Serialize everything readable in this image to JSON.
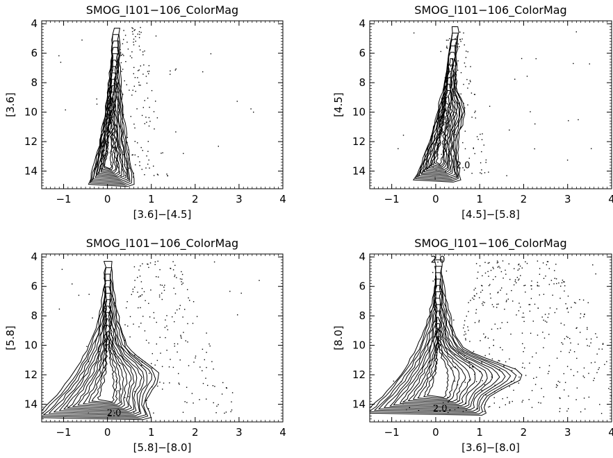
{
  "chart_data": [
    {
      "type": "scatter",
      "subtype": "contour-scatter",
      "title": "SMOG_l101−106_ColorMag",
      "xlabel": "[3.6]−[4.5]",
      "ylabel": "[3.6]",
      "xlim": [
        -1.5,
        4
      ],
      "ylim": [
        15.2,
        3.8
      ],
      "y_inverted": true,
      "xticks": [
        -1,
        0,
        1,
        2,
        3,
        4
      ],
      "xtick_labels": [
        "−1",
        "0",
        "1",
        "2",
        "3",
        "4"
      ],
      "yticks": [
        4,
        6,
        8,
        10,
        12,
        14
      ],
      "ytick_labels": [
        "4",
        "6",
        "8",
        "10",
        "12",
        "14"
      ],
      "contour_labels": [],
      "grid": false,
      "legend": "none"
    },
    {
      "type": "scatter",
      "subtype": "contour-scatter",
      "title": "SMOG_l101−106_ColorMag",
      "xlabel": "[4.5]−[5.8]",
      "ylabel": "[4.5]",
      "xlim": [
        -1.5,
        4
      ],
      "ylim": [
        15.2,
        3.8
      ],
      "y_inverted": true,
      "xticks": [
        -1,
        0,
        1,
        2,
        3,
        4
      ],
      "xtick_labels": [
        "−1",
        "0",
        "1",
        "2",
        "3",
        "4"
      ],
      "yticks": [
        4,
        6,
        8,
        10,
        12,
        14
      ],
      "ytick_labels": [
        "4",
        "6",
        "8",
        "10",
        "12",
        "14"
      ],
      "contour_labels": [
        {
          "text": "2.0",
          "x": 0.62,
          "y": 13.8
        }
      ],
      "grid": false,
      "legend": "none"
    },
    {
      "type": "scatter",
      "subtype": "contour-scatter",
      "title": "SMOG_l101−106_ColorMag",
      "xlabel": "[5.8]−[8.0]",
      "ylabel": "[5.8]",
      "xlim": [
        -1.5,
        4
      ],
      "ylim": [
        15.2,
        3.8
      ],
      "y_inverted": true,
      "xticks": [
        -1,
        0,
        1,
        2,
        3,
        4
      ],
      "xtick_labels": [
        "−1",
        "0",
        "1",
        "2",
        "3",
        "4"
      ],
      "yticks": [
        4,
        6,
        8,
        10,
        12,
        14
      ],
      "ytick_labels": [
        "4",
        "6",
        "8",
        "10",
        "12",
        "14"
      ],
      "contour_labels": [
        {
          "text": "2.0",
          "x": 0.15,
          "y": 14.8
        }
      ],
      "grid": false,
      "legend": "none"
    },
    {
      "type": "scatter",
      "subtype": "contour-scatter",
      "title": "SMOG_l101−106_ColorMag",
      "xlabel": "[3.6]−[8.0]",
      "ylabel": "[8.0]",
      "xlim": [
        -1.5,
        4
      ],
      "ylim": [
        15.2,
        3.8
      ],
      "y_inverted": true,
      "xticks": [
        -1,
        0,
        1,
        2,
        3,
        4
      ],
      "xtick_labels": [
        "−1",
        "0",
        "1",
        "2",
        "3",
        "4"
      ],
      "yticks": [
        4,
        6,
        8,
        10,
        12,
        14
      ],
      "ytick_labels": [
        "4",
        "6",
        "8",
        "10",
        "12",
        "14"
      ],
      "contour_labels": [
        {
          "text": "2.0",
          "x": 0.05,
          "y": 4.4
        },
        {
          "text": "2.0",
          "x": 0.1,
          "y": 14.5
        }
      ],
      "grid": false,
      "legend": "none"
    }
  ]
}
